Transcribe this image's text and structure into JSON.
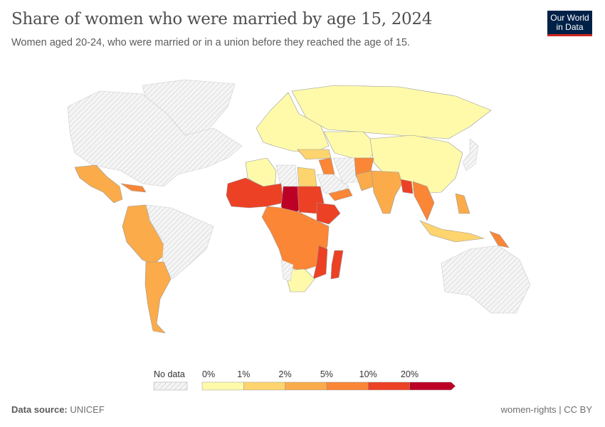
{
  "header": {
    "title": "Share of women who were married by age 15, 2024",
    "subtitle": "Women aged 20-24, who were married or in a union before they reached the age of 15."
  },
  "logo": {
    "text": "Our World in Data",
    "line1": "Our World",
    "line2": "in Data"
  },
  "footer": {
    "source_label": "Data source:",
    "source": "UNICEF",
    "license": "women-rights | CC BY"
  },
  "chart_data": {
    "type": "choropleth",
    "title": "Share of women who were married by age 15, 2024",
    "legend": {
      "no_data_label": "No data",
      "no_data_color": "#e6e6e6",
      "ticks": [
        "0%",
        "1%",
        "2%",
        "5%",
        "10%",
        "20%"
      ],
      "bins": [
        {
          "range": "0-1%",
          "color": "#fefaaa"
        },
        {
          "range": "1-2%",
          "color": "#fdd46e"
        },
        {
          "range": "2-5%",
          "color": "#fbab4a"
        },
        {
          "range": "5-10%",
          "color": "#fa8636"
        },
        {
          "range": "10-20%",
          "color": "#ec4125"
        },
        {
          "range": "20%+",
          "color": "#bd0026"
        }
      ]
    },
    "regions": {
      "Greenland": "none",
      "North America": "none",
      "Mexico & Central America": "2-5%",
      "Caribbean": "5-10%",
      "Colombia/Peru/Bolivia": "2-5%",
      "Brazil": "none",
      "Guyana/Suriname": "5-10%",
      "Argentina": "2-5%",
      "Europe": "0-1%",
      "Russia": "0-1%",
      "Central Asia": "0-1%",
      "Mongolia/China": "0-1%",
      "Japan": "none",
      "Algeria": "0-1%",
      "Libya": "none",
      "Egypt": "1-2%",
      "Mali/Niger": "10-20%",
      "Chad": "20%+",
      "Sudan": "10-20%",
      "Ethiopia": "10-20%",
      "Central Africa": "5-10%",
      "Mozambique": "10-20%",
      "Southern Africa": "0-1%",
      "Namibia": "none",
      "Madagascar": "10-20%",
      "Turkey": "1-2%",
      "Iraq": "5-10%",
      "Saudi Arabia": "none",
      "Yemen": "5-10%",
      "Iran": "none",
      "Afghanistan": "5-10%",
      "Pakistan": "2-5%",
      "India": "2-5%",
      "Bangladesh": "10-20%",
      "Myanmar/Thailand": "5-10%",
      "Indonesia": "1-2%",
      "Philippines": "2-5%",
      "Papua New Guinea": "5-10%",
      "Australia": "none"
    }
  }
}
